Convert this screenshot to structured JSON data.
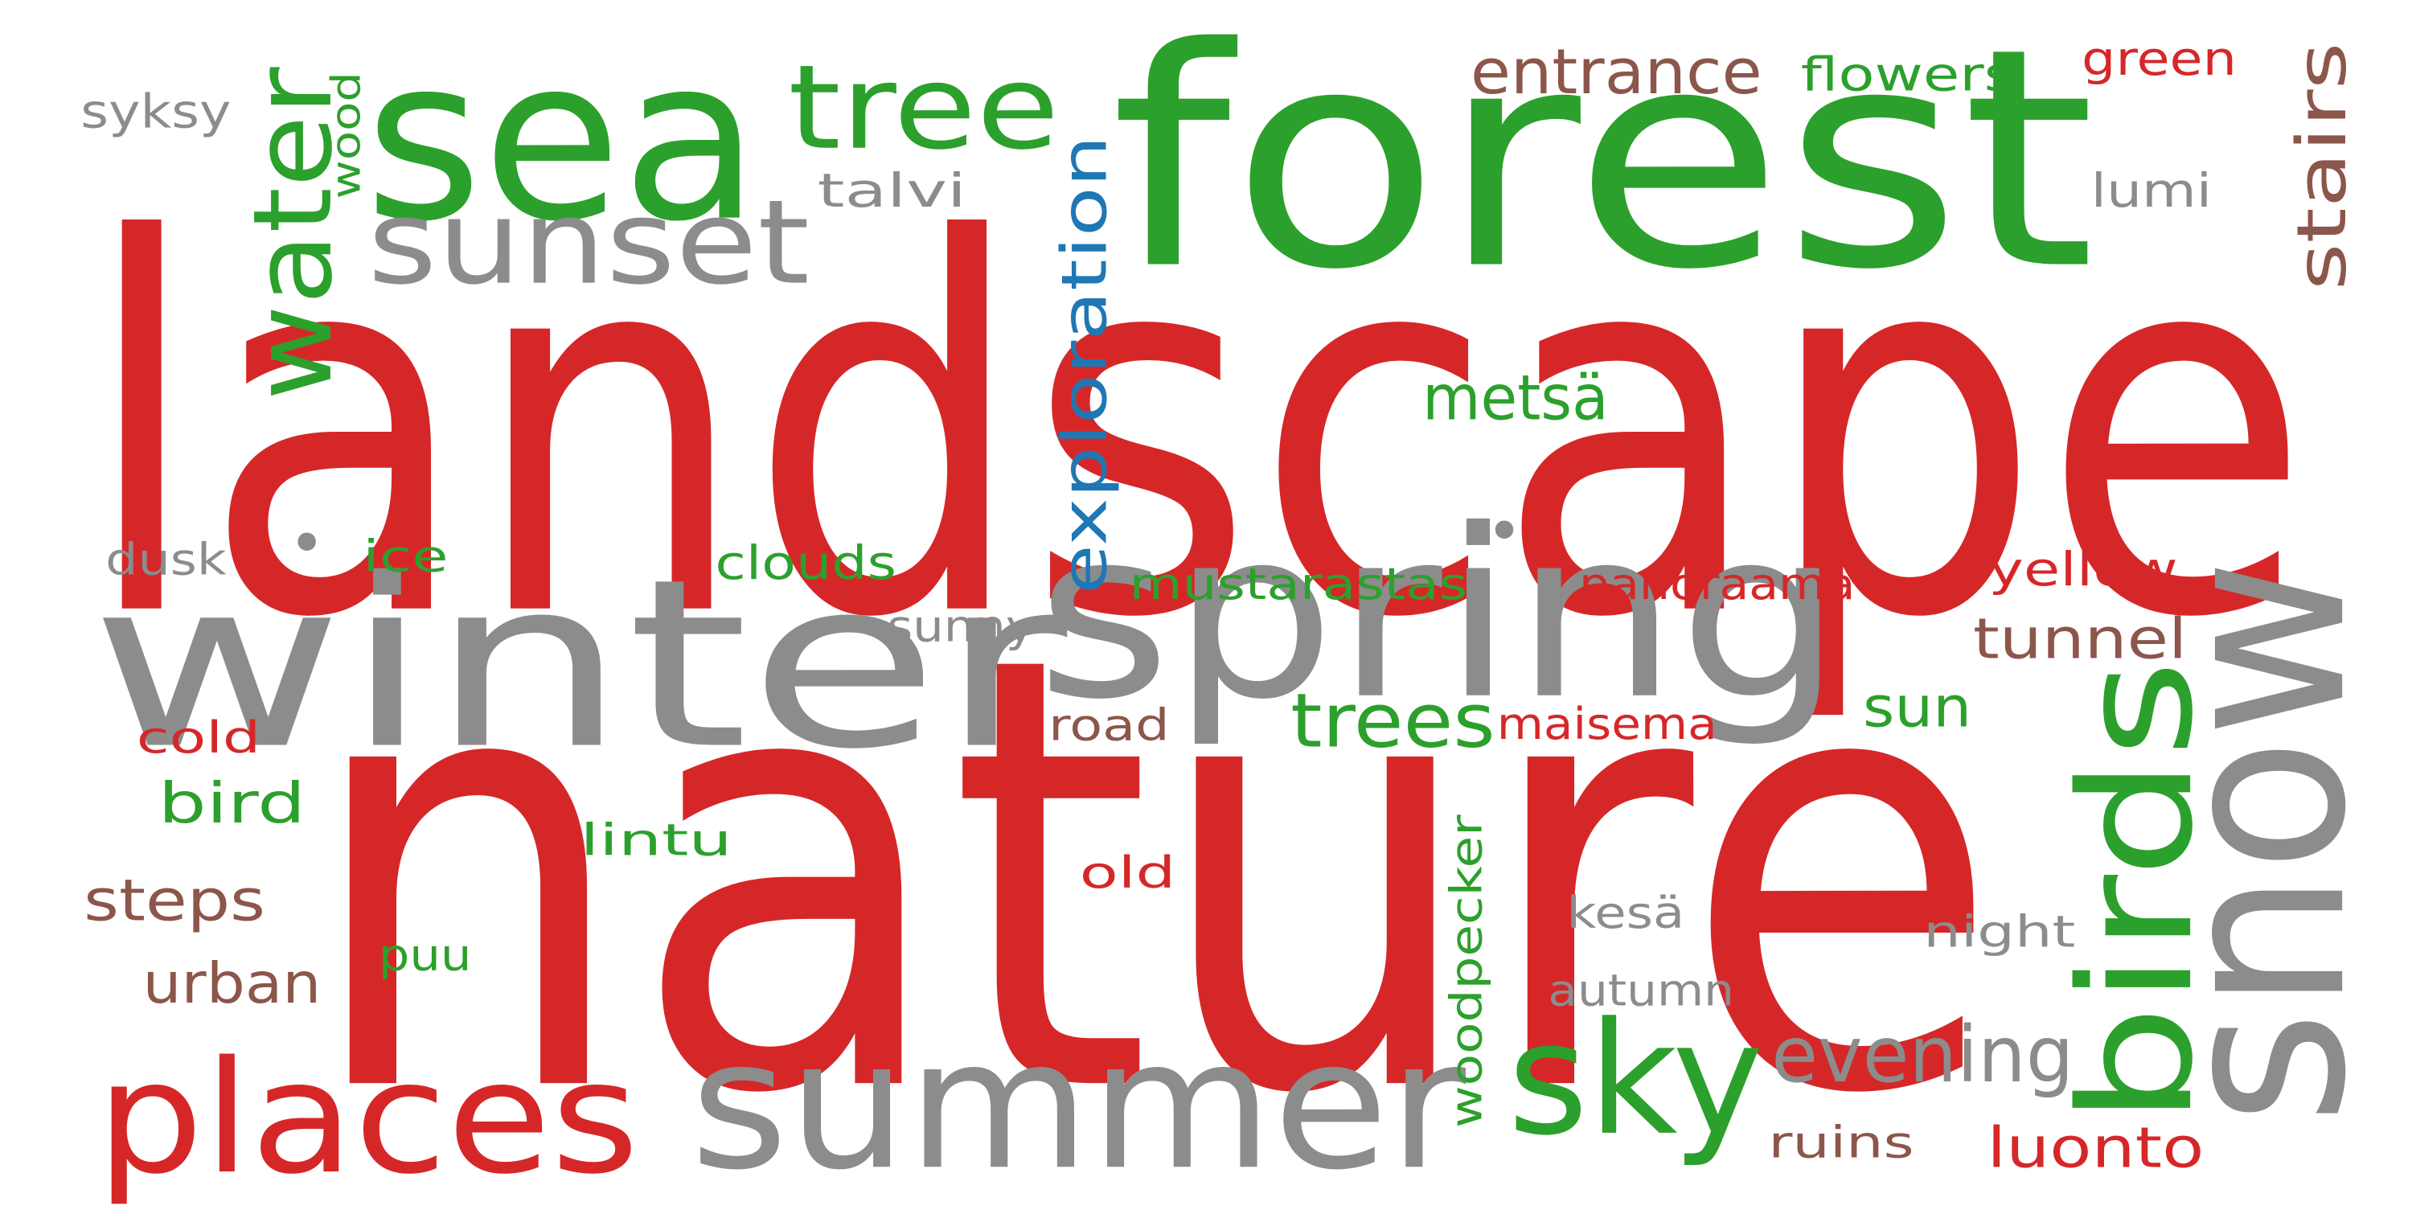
{
  "colors": {
    "red": "#d62728",
    "green": "#2ca02c",
    "gray": "#8c8c8c",
    "brown": "#8c564b",
    "blue": "#1f77b4",
    "background": "#ffffff"
  },
  "words": [
    {
      "id": "nature",
      "text": "nature",
      "color": "red",
      "rotation": "horizontal"
    },
    {
      "id": "landscape",
      "text": "landscape",
      "color": "red",
      "rotation": "horizontal"
    },
    {
      "id": "forest",
      "text": "forest",
      "color": "green",
      "rotation": "horizontal"
    },
    {
      "id": "winter",
      "text": "winter",
      "color": "gray",
      "rotation": "horizontal"
    },
    {
      "id": "spring",
      "text": "spring",
      "color": "gray",
      "rotation": "horizontal"
    },
    {
      "id": "summer",
      "text": "summer",
      "color": "gray",
      "rotation": "horizontal"
    },
    {
      "id": "snow",
      "text": "snow",
      "color": "gray",
      "rotation": "vertical"
    },
    {
      "id": "sea",
      "text": "sea",
      "color": "green",
      "rotation": "horizontal"
    },
    {
      "id": "places",
      "text": "places",
      "color": "red",
      "rotation": "horizontal"
    },
    {
      "id": "birds",
      "text": "birds",
      "color": "green",
      "rotation": "vertical"
    },
    {
      "id": "sky",
      "text": "sky",
      "color": "green",
      "rotation": "horizontal"
    },
    {
      "id": "sunset",
      "text": "sunset",
      "color": "gray",
      "rotation": "horizontal"
    },
    {
      "id": "tree",
      "text": "tree",
      "color": "green",
      "rotation": "horizontal"
    },
    {
      "id": "water",
      "text": "water",
      "color": "green",
      "rotation": "vertical"
    },
    {
      "id": "evening",
      "text": "evening",
      "color": "gray",
      "rotation": "horizontal"
    },
    {
      "id": "trees",
      "text": "trees",
      "color": "green",
      "rotation": "horizontal"
    },
    {
      "id": "stairs",
      "text": "stairs",
      "color": "brown",
      "rotation": "vertical"
    },
    {
      "id": "exploration",
      "text": "exploration",
      "color": "blue",
      "rotation": "vertical"
    },
    {
      "id": "entrance",
      "text": "entrance",
      "color": "brown",
      "rotation": "horizontal"
    },
    {
      "id": "metsa",
      "text": "metsä",
      "color": "green",
      "rotation": "horizontal"
    },
    {
      "id": "tunnel",
      "text": "tunnel",
      "color": "brown",
      "rotation": "horizontal"
    },
    {
      "id": "steps",
      "text": "steps",
      "color": "brown",
      "rotation": "horizontal"
    },
    {
      "id": "luonto",
      "text": "luonto",
      "color": "red",
      "rotation": "horizontal"
    },
    {
      "id": "urban",
      "text": "urban",
      "color": "brown",
      "rotation": "horizontal"
    },
    {
      "id": "bird",
      "text": "bird",
      "color": "green",
      "rotation": "horizontal"
    },
    {
      "id": "sun",
      "text": "sun",
      "color": "green",
      "rotation": "horizontal"
    },
    {
      "id": "clouds",
      "text": "clouds",
      "color": "green",
      "rotation": "horizontal"
    },
    {
      "id": "flowers",
      "text": "flowers",
      "color": "green",
      "rotation": "horizontal"
    },
    {
      "id": "green",
      "text": "green",
      "color": "red",
      "rotation": "horizontal"
    },
    {
      "id": "talvi",
      "text": "talvi",
      "color": "gray",
      "rotation": "horizontal"
    },
    {
      "id": "lumi",
      "text": "lumi",
      "color": "gray",
      "rotation": "horizontal"
    },
    {
      "id": "syksy",
      "text": "syksy",
      "color": "gray",
      "rotation": "horizontal"
    },
    {
      "id": "wood",
      "text": "wood",
      "color": "green",
      "rotation": "vertical"
    },
    {
      "id": "mustarastas",
      "text": "mustarastas",
      "color": "green",
      "rotation": "horizontal"
    },
    {
      "id": "panoraama",
      "text": "panoraama",
      "color": "red",
      "rotation": "horizontal"
    },
    {
      "id": "yellow",
      "text": "yellow",
      "color": "red",
      "rotation": "horizontal"
    },
    {
      "id": "dusk",
      "text": "dusk",
      "color": "gray",
      "rotation": "horizontal"
    },
    {
      "id": "ice",
      "text": "ice",
      "color": "green",
      "rotation": "horizontal"
    },
    {
      "id": "sunny",
      "text": "sunny",
      "color": "gray",
      "rotation": "horizontal"
    },
    {
      "id": "maisema",
      "text": "maisema",
      "color": "red",
      "rotation": "horizontal"
    },
    {
      "id": "road",
      "text": "road",
      "color": "brown",
      "rotation": "horizontal"
    },
    {
      "id": "cold",
      "text": "cold",
      "color": "red",
      "rotation": "horizontal"
    },
    {
      "id": "lintu",
      "text": "lintu",
      "color": "green",
      "rotation": "horizontal"
    },
    {
      "id": "old",
      "text": "old",
      "color": "red",
      "rotation": "horizontal"
    },
    {
      "id": "woodpecker",
      "text": "woodpecker",
      "color": "green",
      "rotation": "vertical"
    },
    {
      "id": "kesa",
      "text": "kesä",
      "color": "gray",
      "rotation": "horizontal"
    },
    {
      "id": "night",
      "text": "night",
      "color": "gray",
      "rotation": "horizontal"
    },
    {
      "id": "puu",
      "text": "puu",
      "color": "green",
      "rotation": "horizontal"
    },
    {
      "id": "autumn",
      "text": "autumn",
      "color": "gray",
      "rotation": "horizontal"
    },
    {
      "id": "ruins",
      "text": "ruins",
      "color": "brown",
      "rotation": "horizontal"
    },
    {
      "id": "dot1",
      "text": "•",
      "color": "gray",
      "rotation": "horizontal"
    },
    {
      "id": "dot2",
      "text": "•",
      "color": "gray",
      "rotation": "horizontal"
    }
  ]
}
